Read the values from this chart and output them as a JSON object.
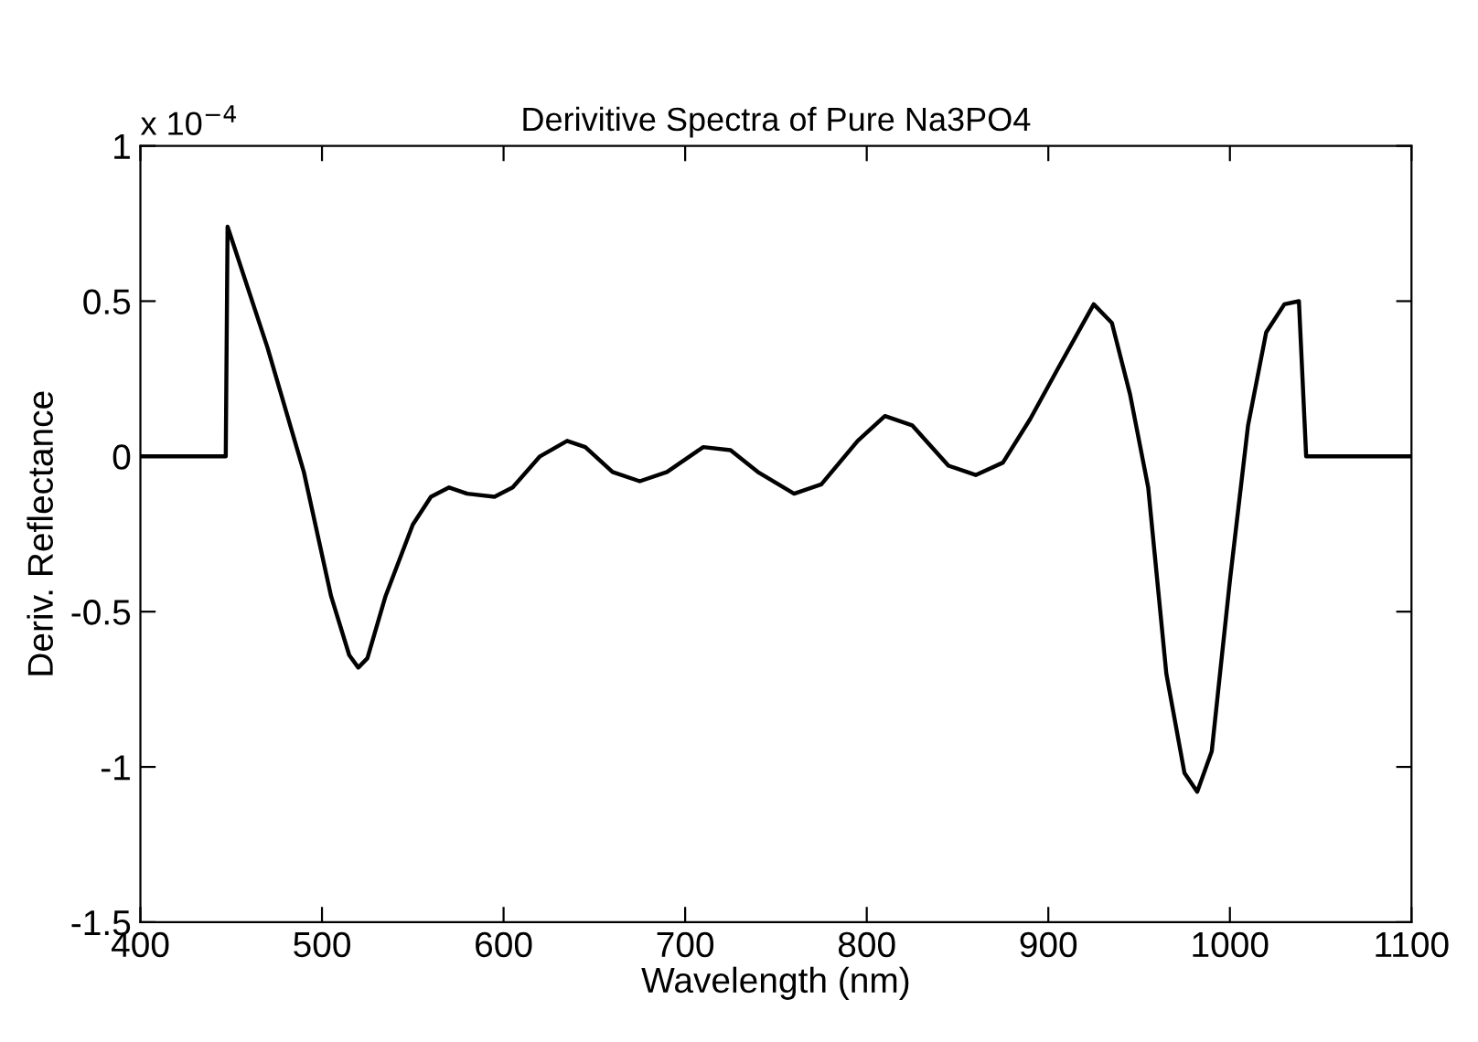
{
  "chart_data": {
    "type": "line",
    "title": "Derivitive Spectra of Pure Na3PO4",
    "xlabel": "Wavelength (nm)",
    "ylabel": "Deriv. Reflectance",
    "annotations": [
      "x 10$^{−4}$"
    ],
    "x": [
      400,
      447,
      448,
      470,
      490,
      505,
      515,
      520,
      525,
      535,
      550,
      560,
      570,
      580,
      595,
      605,
      620,
      635,
      645,
      660,
      675,
      690,
      710,
      725,
      740,
      760,
      775,
      795,
      810,
      825,
      845,
      860,
      875,
      890,
      905,
      925,
      935,
      945,
      955,
      965,
      975,
      982,
      990,
      1000,
      1010,
      1020,
      1030,
      1038,
      1042,
      1100
    ],
    "series": [
      {
        "color": "#000000",
        "values": [
          0,
          0,
          0.74,
          0.35,
          -0.05,
          -0.45,
          -0.64,
          -0.68,
          -0.65,
          -0.45,
          -0.22,
          -0.13,
          -0.1,
          -0.12,
          -0.13,
          -0.1,
          0,
          0.05,
          0.03,
          -0.05,
          -0.08,
          -0.05,
          0.03,
          0.02,
          -0.05,
          -0.12,
          -0.09,
          0.05,
          0.13,
          0.1,
          -0.03,
          -0.06,
          -0.02,
          0.12,
          0.28,
          0.49,
          0.43,
          0.2,
          -0.1,
          -0.7,
          -1.02,
          -1.08,
          -0.95,
          -0.4,
          0.1,
          0.4,
          0.49,
          0.5,
          0,
          0
        ]
      }
    ],
    "xlim": [
      400,
      1100
    ],
    "xticks": [
      400,
      500,
      600,
      700,
      800,
      900,
      1000,
      1100
    ],
    "ylim": [
      -1.5,
      1
    ],
    "yticks": [
      -1.5,
      -1,
      -0.5,
      0,
      0.5,
      1
    ],
    "grid": false,
    "legend": false,
    "marker": "none",
    "line_style": "solid"
  }
}
